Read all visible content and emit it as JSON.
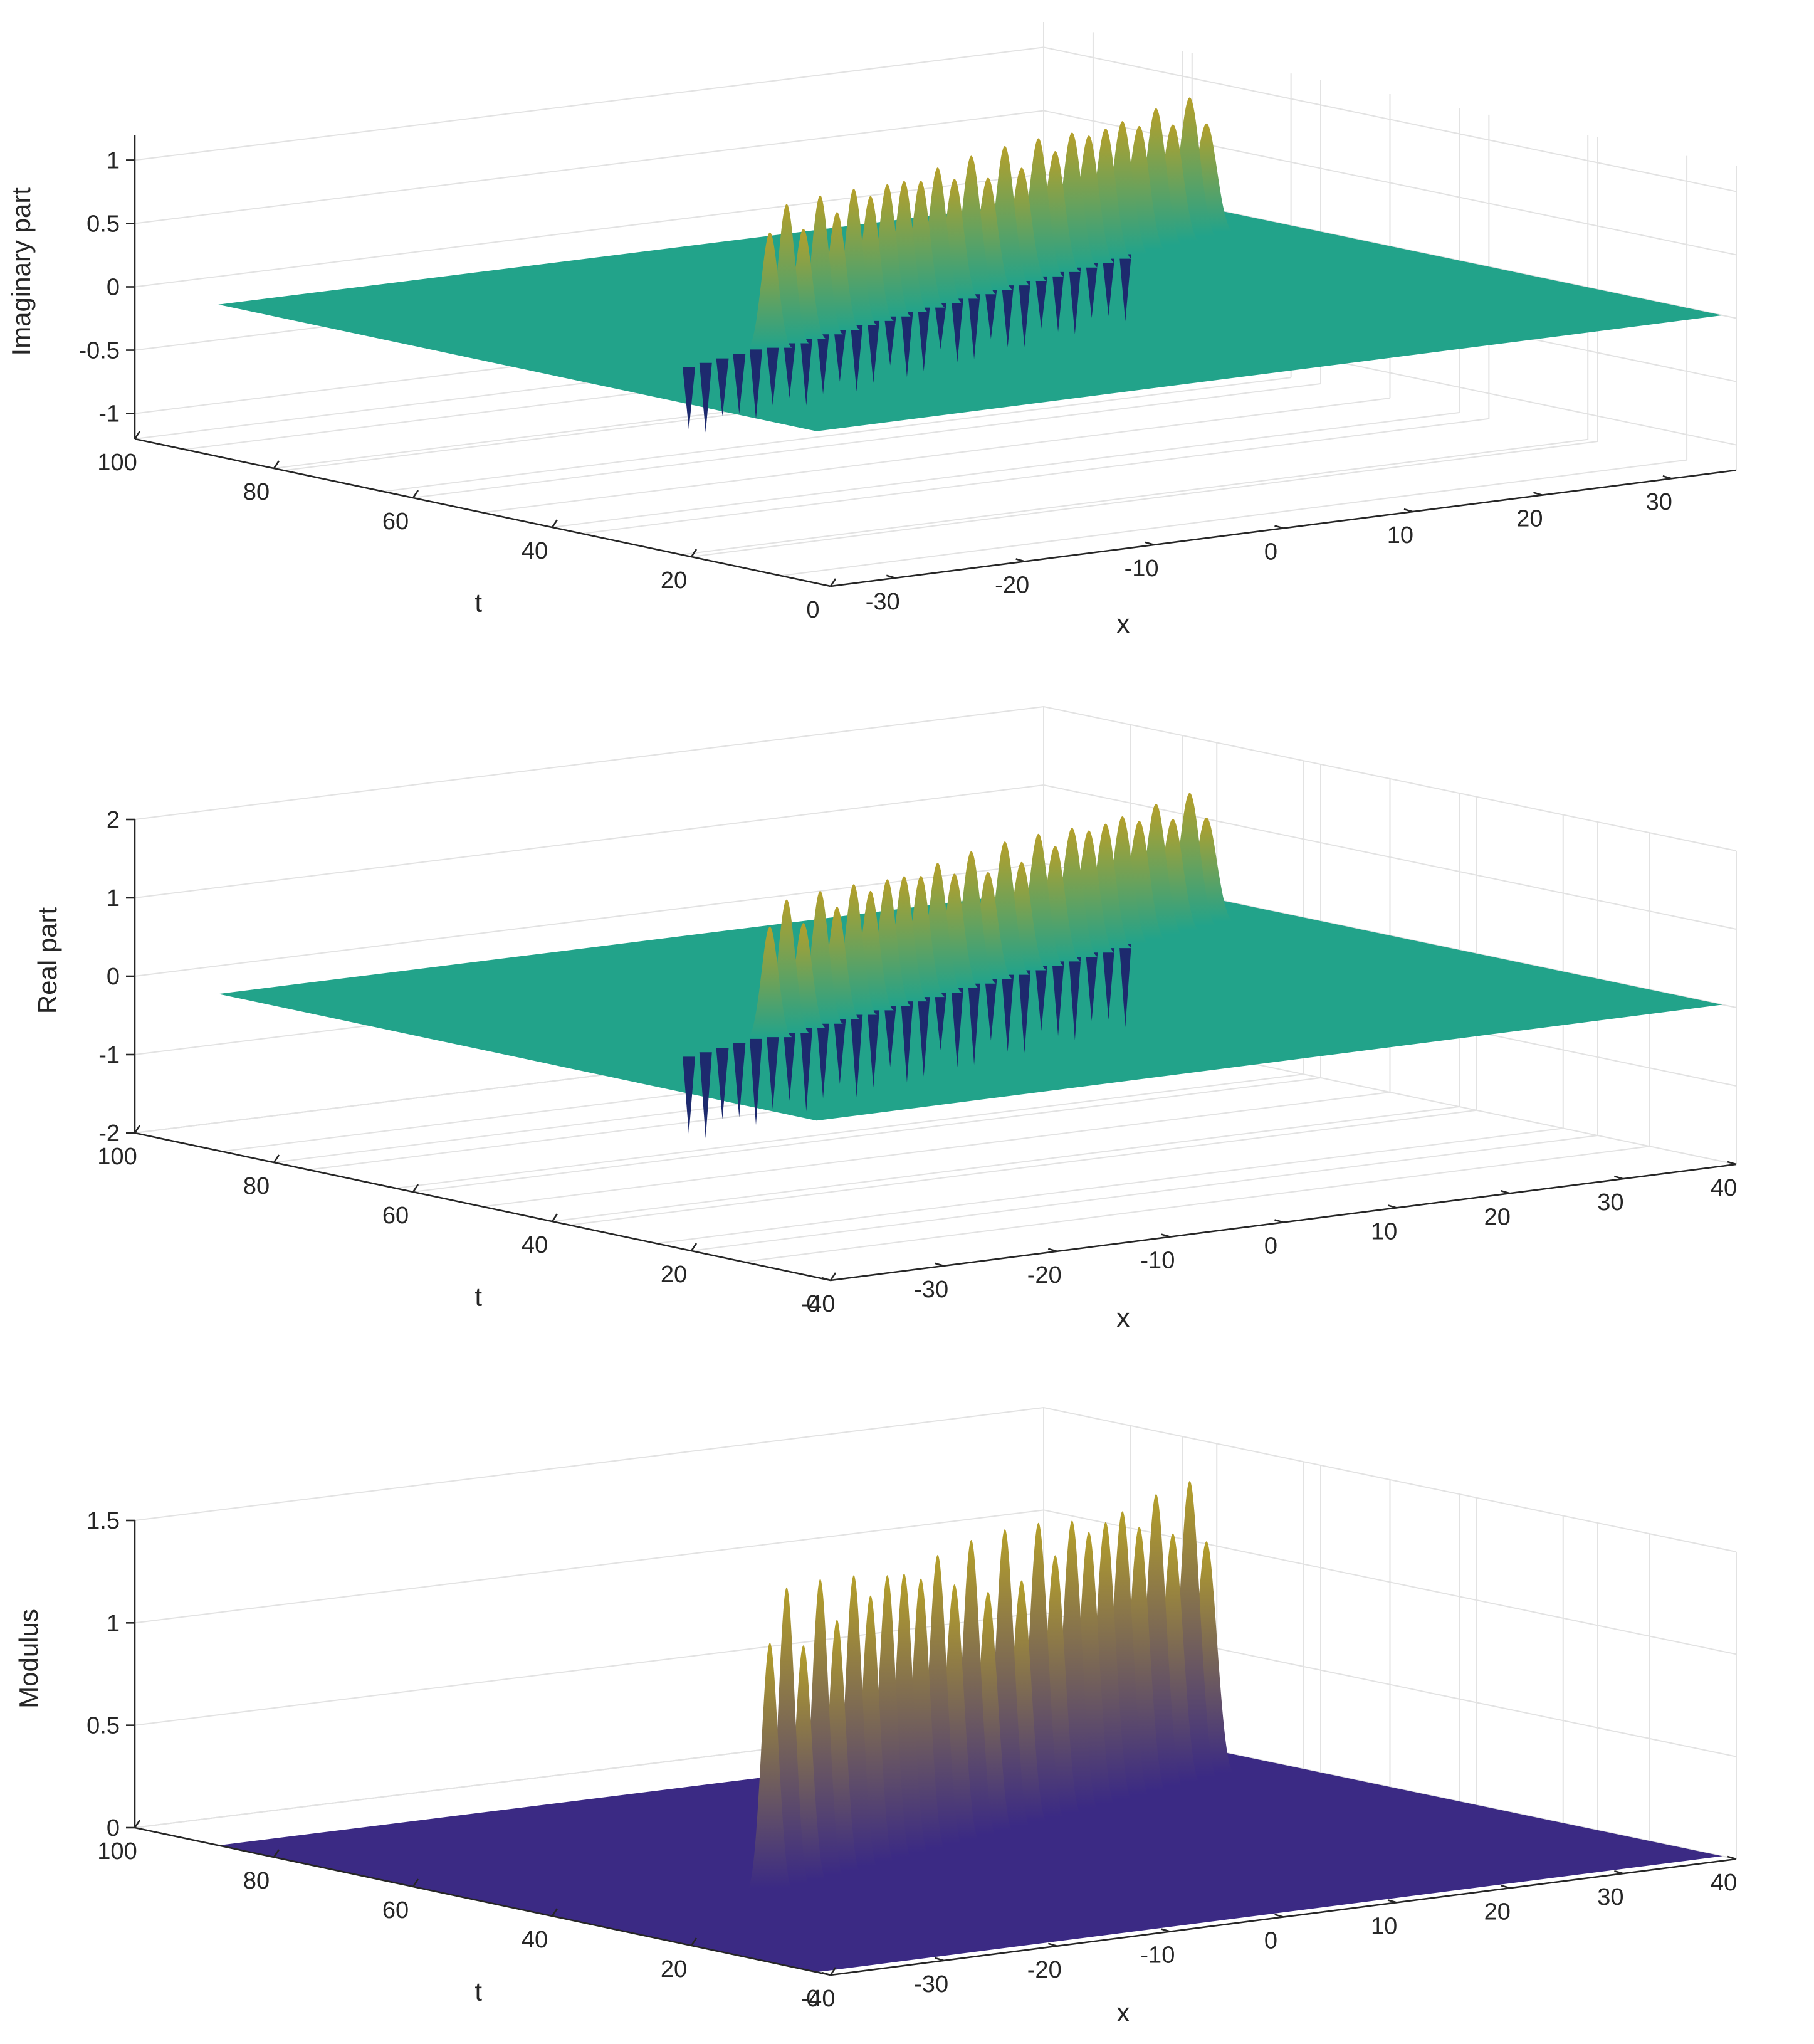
{
  "chart_data": [
    {
      "type": "surface",
      "panel": "imaginary",
      "zlabel": "Imaginary part",
      "xlabel": "x",
      "tlabel": "t",
      "zlim": [
        -1.2,
        1.2
      ],
      "z_ticks": [
        {
          "value": 1,
          "label": "1"
        },
        {
          "value": 0.5,
          "label": "0.5"
        },
        {
          "value": 0,
          "label": "0"
        },
        {
          "value": -0.5,
          "label": "-0.5"
        },
        {
          "value": -1,
          "label": "-1"
        }
      ],
      "xlim": [
        -35,
        35
      ],
      "x_ticks": [
        {
          "value": -30,
          "label": "-30"
        },
        {
          "value": -20,
          "label": "-20"
        },
        {
          "value": -10,
          "label": "-10"
        },
        {
          "value": 0,
          "label": "0"
        },
        {
          "value": 10,
          "label": "10"
        },
        {
          "value": 20,
          "label": "20"
        },
        {
          "value": 30,
          "label": "30"
        }
      ],
      "tlim": [
        0,
        100
      ],
      "t_ticks": [
        {
          "value": 100,
          "label": "100"
        },
        {
          "value": 80,
          "label": "80"
        },
        {
          "value": 60,
          "label": "60"
        },
        {
          "value": 40,
          "label": "40"
        },
        {
          "value": 20,
          "label": "20"
        },
        {
          "value": 0,
          "label": "0"
        }
      ],
      "base_color": "#22a38a",
      "peaks": {
        "count": 27,
        "peak_max": 1.1,
        "trough_min": -1.0,
        "pos_color": "#b5a02a",
        "neg_color": "#1d2a6e"
      }
    },
    {
      "type": "surface",
      "panel": "real",
      "zlabel": "Real part",
      "xlabel": "x",
      "tlabel": "t",
      "zlim": [
        -2,
        2
      ],
      "z_ticks": [
        {
          "value": 2,
          "label": "2"
        },
        {
          "value": 1,
          "label": "1"
        },
        {
          "value": 0,
          "label": "0"
        },
        {
          "value": -1,
          "label": "-1"
        },
        {
          "value": -2,
          "label": "-2"
        }
      ],
      "xlim": [
        -40,
        40
      ],
      "x_ticks": [
        {
          "value": -40,
          "label": "-40"
        },
        {
          "value": -30,
          "label": "-30"
        },
        {
          "value": -20,
          "label": "-20"
        },
        {
          "value": -10,
          "label": "-10"
        },
        {
          "value": 0,
          "label": "0"
        },
        {
          "value": 10,
          "label": "10"
        },
        {
          "value": 20,
          "label": "20"
        },
        {
          "value": 30,
          "label": "30"
        },
        {
          "value": 40,
          "label": "40"
        }
      ],
      "tlim": [
        0,
        100
      ],
      "t_ticks": [
        {
          "value": 100,
          "label": "100"
        },
        {
          "value": 80,
          "label": "80"
        },
        {
          "value": 60,
          "label": "60"
        },
        {
          "value": 40,
          "label": "40"
        },
        {
          "value": 20,
          "label": "20"
        },
        {
          "value": 0,
          "label": "0"
        }
      ],
      "base_color": "#22a38a",
      "peaks": {
        "count": 27,
        "peak_max": 1.7,
        "trough_min": -2.0,
        "pos_color": "#b5a02a",
        "neg_color": "#1d2a6e"
      }
    },
    {
      "type": "surface",
      "panel": "modulus",
      "zlabel": "Modulus",
      "xlabel": "x",
      "tlabel": "t",
      "zlim": [
        0,
        1.5
      ],
      "z_ticks": [
        {
          "value": 1.5,
          "label": "1.5"
        },
        {
          "value": 1,
          "label": "1"
        },
        {
          "value": 0.5,
          "label": "0.5"
        },
        {
          "value": 0,
          "label": "0"
        }
      ],
      "xlim": [
        -40,
        40
      ],
      "x_ticks": [
        {
          "value": -40,
          "label": "-40"
        },
        {
          "value": -30,
          "label": "-30"
        },
        {
          "value": -20,
          "label": "-20"
        },
        {
          "value": -10,
          "label": "-10"
        },
        {
          "value": 0,
          "label": "0"
        },
        {
          "value": 10,
          "label": "10"
        },
        {
          "value": 20,
          "label": "20"
        },
        {
          "value": 30,
          "label": "30"
        },
        {
          "value": 40,
          "label": "40"
        }
      ],
      "tlim": [
        0,
        100
      ],
      "t_ticks": [
        {
          "value": 100,
          "label": "100"
        },
        {
          "value": 80,
          "label": "80"
        },
        {
          "value": 60,
          "label": "60"
        },
        {
          "value": 40,
          "label": "40"
        },
        {
          "value": 20,
          "label": "20"
        },
        {
          "value": 0,
          "label": "0"
        }
      ],
      "base_color": "#3b2a84",
      "peaks": {
        "count": 27,
        "peak_max": 1.45,
        "trough_min": 0,
        "pos_color": "#b5a02a",
        "neg_color": "#3b2a84"
      }
    }
  ]
}
